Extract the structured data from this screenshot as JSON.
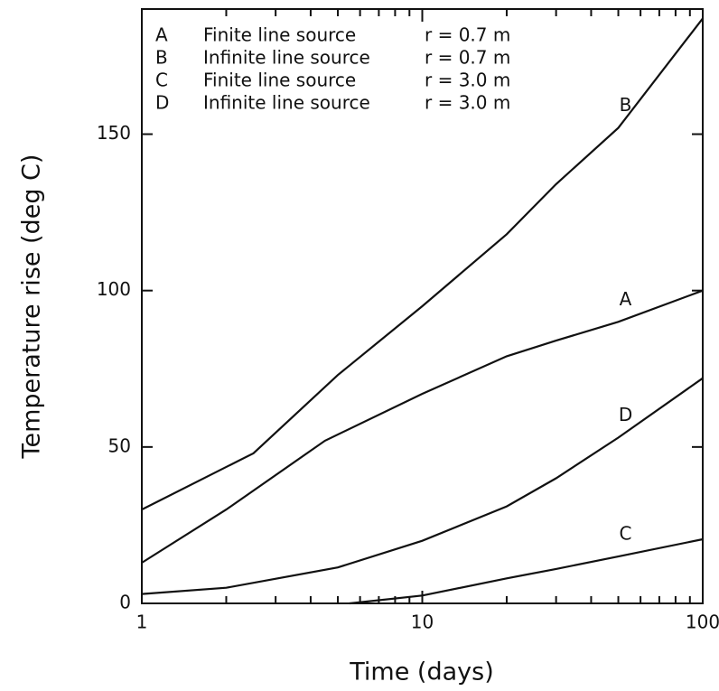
{
  "chart_data": {
    "type": "line",
    "x_label": "Time (days)",
    "y_label": "Temperature rise (deg C)",
    "xlog": true,
    "xlim": [
      1,
      100
    ],
    "ylim": [
      0,
      190
    ],
    "xticks": [
      1,
      10,
      100
    ],
    "xminorticks": [
      2,
      3,
      4,
      5,
      6,
      7,
      8,
      9,
      20,
      30,
      40,
      50,
      60,
      70,
      80,
      90
    ],
    "yticks": [
      0,
      50,
      100,
      150
    ],
    "color": "#111111",
    "series": [
      {
        "name": "A",
        "description": "Finite line source",
        "radius": "r = 0.7 m",
        "x": [
          1,
          2,
          4.5,
          10,
          20,
          30,
          50,
          100
        ],
        "values": [
          13,
          30,
          52,
          67,
          79,
          84,
          90,
          100
        ]
      },
      {
        "name": "B",
        "description": "Infinite line source",
        "radius": "r = 0.7 m",
        "x": [
          1,
          2.5,
          5,
          10,
          20,
          30,
          50,
          100
        ],
        "values": [
          30,
          48,
          73,
          95,
          118,
          134,
          152,
          187
        ]
      },
      {
        "name": "C",
        "description": "Finite line source",
        "radius": "r = 3.0 m",
        "x": [
          5.5,
          10,
          20,
          30,
          50,
          100
        ],
        "values": [
          0,
          2.5,
          8,
          11,
          15,
          20.5
        ]
      },
      {
        "name": "D",
        "description": "Infinite line source",
        "radius": "r = 3.0 m",
        "x": [
          1,
          2,
          5,
          10,
          20,
          30,
          50,
          100
        ],
        "values": [
          3,
          5,
          11.5,
          20,
          31,
          40,
          53,
          72
        ]
      }
    ]
  }
}
